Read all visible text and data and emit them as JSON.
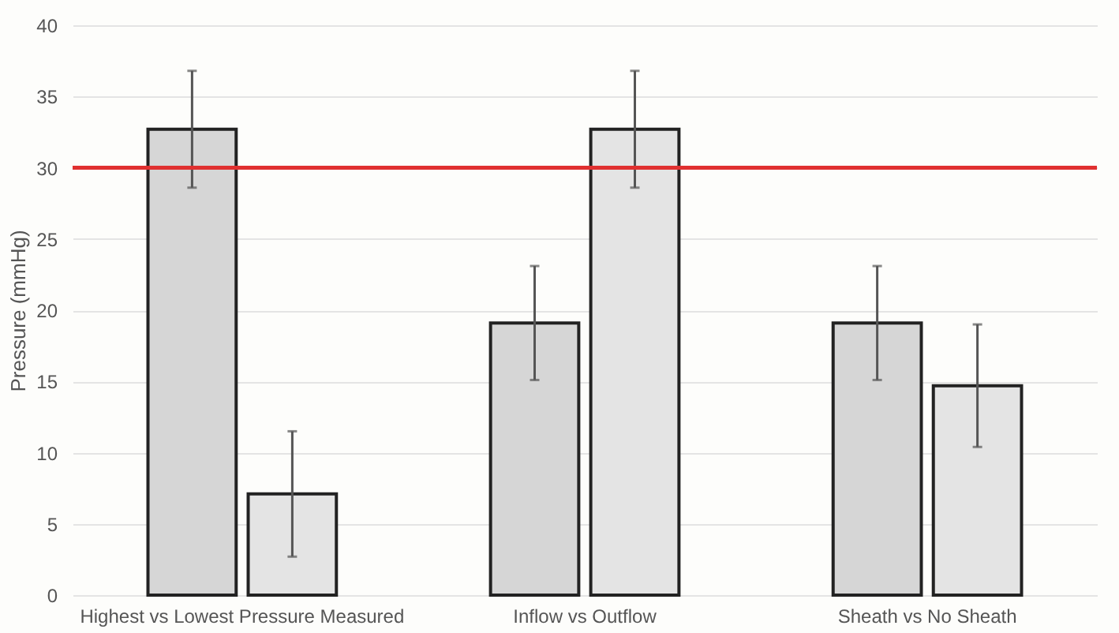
{
  "chart_data": {
    "type": "bar",
    "ylabel": "Pressure (mmHg)",
    "categories": [
      "Highest vs Lowest Pressure Measured",
      "Inflow vs Outflow",
      "Sheath vs No Sheath"
    ],
    "series": [
      {
        "color": "#d6d6d6",
        "values": [
          32.7,
          19.1,
          19.1
        ],
        "errors": [
          4.1,
          4.0,
          4.0
        ]
      },
      {
        "color": "#e4e4e4",
        "values": [
          7.1,
          32.7,
          14.7
        ],
        "errors": [
          4.4,
          4.1,
          4.3
        ]
      }
    ],
    "ylim": [
      0,
      40
    ],
    "yticks": [
      0,
      5,
      10,
      15,
      20,
      25,
      30,
      35,
      40
    ],
    "grid": "y",
    "ref_lines": [
      {
        "axis": "y",
        "value": 30,
        "color": "#e03030"
      }
    ]
  }
}
